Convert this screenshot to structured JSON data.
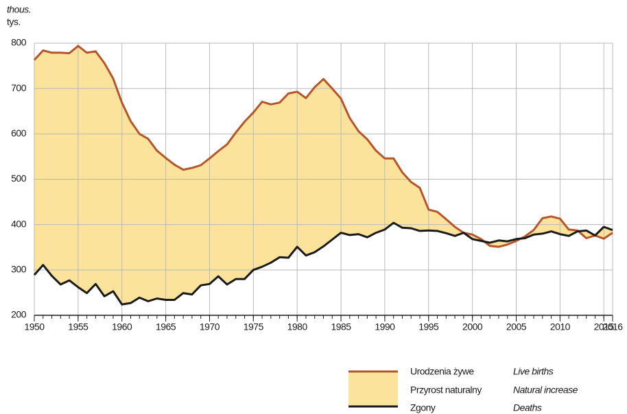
{
  "chart_data": {
    "type": "area-between-lines",
    "y_unit_en": "thous.",
    "y_unit_pl": "tys.",
    "x": [
      1950,
      1951,
      1952,
      1953,
      1954,
      1955,
      1956,
      1957,
      1958,
      1959,
      1960,
      1961,
      1962,
      1963,
      1964,
      1965,
      1966,
      1967,
      1968,
      1969,
      1970,
      1971,
      1972,
      1973,
      1974,
      1975,
      1976,
      1977,
      1978,
      1979,
      1980,
      1981,
      1982,
      1983,
      1984,
      1985,
      1986,
      1987,
      1988,
      1989,
      1990,
      1991,
      1992,
      1993,
      1994,
      1995,
      1996,
      1997,
      1998,
      1999,
      2000,
      2001,
      2002,
      2003,
      2004,
      2005,
      2006,
      2007,
      2008,
      2009,
      2010,
      2011,
      2012,
      2013,
      2014,
      2015,
      2016
    ],
    "series": [
      {
        "name": "Urodzenia żywe",
        "name_en": "Live births",
        "color": "#b5562a",
        "values": [
          763,
          784,
          779,
          779,
          778,
          794,
          779,
          782,
          756,
          722,
          669,
          628,
          600,
          589,
          563,
          547,
          532,
          521,
          525,
          531,
          546,
          562,
          577,
          603,
          627,
          647,
          671,
          665,
          669,
          689,
          693,
          679,
          703,
          721,
          700,
          678,
          635,
          606,
          588,
          563,
          546,
          546,
          515,
          494,
          481,
          433,
          428,
          412,
          395,
          382,
          378,
          368,
          353,
          351,
          356,
          364,
          374,
          388,
          414,
          418,
          413,
          389,
          387,
          370,
          376,
          369,
          382
        ]
      },
      {
        "name": "Zgony",
        "name_en": "Deaths",
        "color": "#1a1a1a",
        "values": [
          289,
          311,
          287,
          268,
          277,
          262,
          249,
          269,
          242,
          253,
          224,
          227,
          239,
          231,
          237,
          234,
          234,
          249,
          246,
          266,
          269,
          286,
          268,
          280,
          280,
          300,
          307,
          316,
          328,
          327,
          351,
          332,
          339,
          352,
          367,
          382,
          377,
          379,
          372,
          382,
          389,
          404,
          393,
          392,
          386,
          387,
          386,
          381,
          375,
          382,
          368,
          364,
          360,
          365,
          363,
          368,
          370,
          378,
          380,
          385,
          379,
          375,
          385,
          387,
          376,
          395,
          388
        ]
      }
    ],
    "fill": {
      "name": "Przyrost naturalny",
      "name_en": "Natural increase",
      "color": "#fbe39b"
    },
    "xlim": [
      1950,
      2016
    ],
    "xticks": [
      1950,
      1955,
      1960,
      1965,
      1970,
      1975,
      1980,
      1985,
      1990,
      1995,
      2000,
      2005,
      2010,
      2015,
      2016
    ],
    "ylim": [
      200,
      800
    ],
    "yticks": [
      200,
      300,
      400,
      500,
      600,
      700,
      800
    ],
    "grid": true
  }
}
